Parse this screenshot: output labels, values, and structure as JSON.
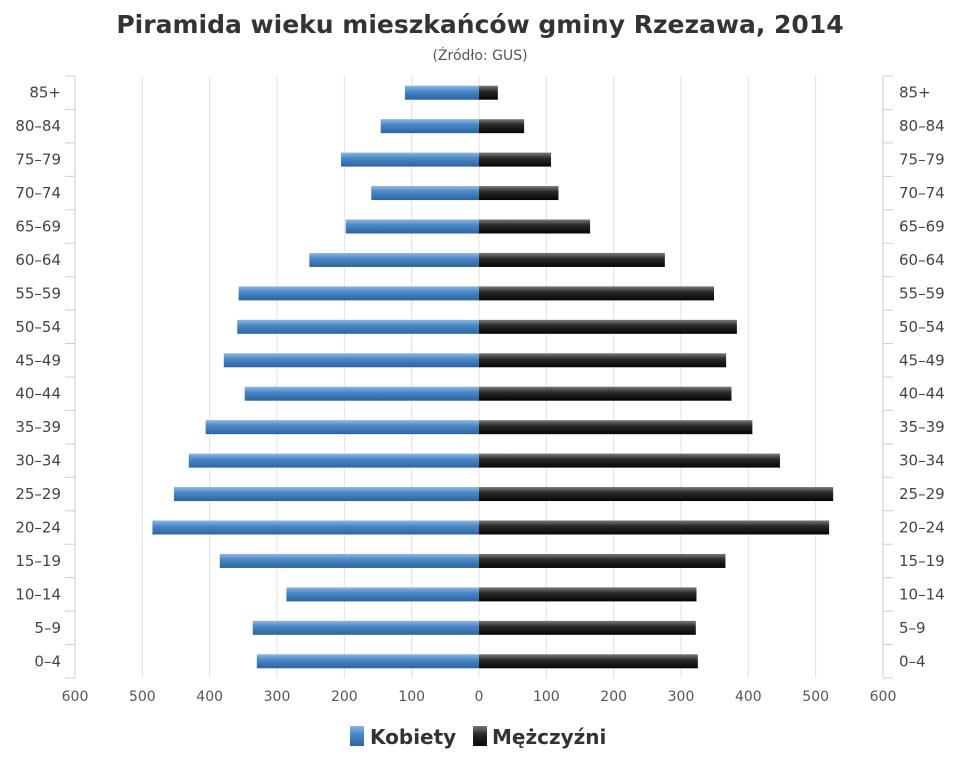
{
  "chart_data": {
    "type": "bar",
    "orientation": "horizontal",
    "title": "Piramida wieku mieszkańców gminy Rzezawa, 2014",
    "subtitle": "(Źródło: GUS)",
    "categories": [
      "85+",
      "80–84",
      "75–79",
      "70–74",
      "65–69",
      "60–64",
      "55–59",
      "50–54",
      "45–49",
      "40–44",
      "35–39",
      "30–34",
      "25–29",
      "20–24",
      "15–19",
      "10–14",
      "5–9",
      "0–4"
    ],
    "series": [
      {
        "name": "Kobiety",
        "color": "#3d7ebf",
        "values": [
          110,
          146,
          205,
          160,
          198,
          252,
          357,
          359,
          379,
          348,
          406,
          431,
          453,
          485,
          385,
          286,
          336,
          330
        ]
      },
      {
        "name": "Mężczyźni",
        "color": "#1e1e1e",
        "values": [
          28,
          67,
          107,
          118,
          165,
          276,
          349,
          383,
          367,
          375,
          406,
          447,
          526,
          520,
          366,
          323,
          322,
          325
        ]
      }
    ],
    "x_ticks": [
      "600",
      "500",
      "400",
      "300",
      "200",
      "100",
      "0",
      "100",
      "200",
      "300",
      "400",
      "500",
      "600"
    ],
    "xlim": [
      -600,
      600
    ],
    "grid": true,
    "legend_position": "bottom-center"
  }
}
